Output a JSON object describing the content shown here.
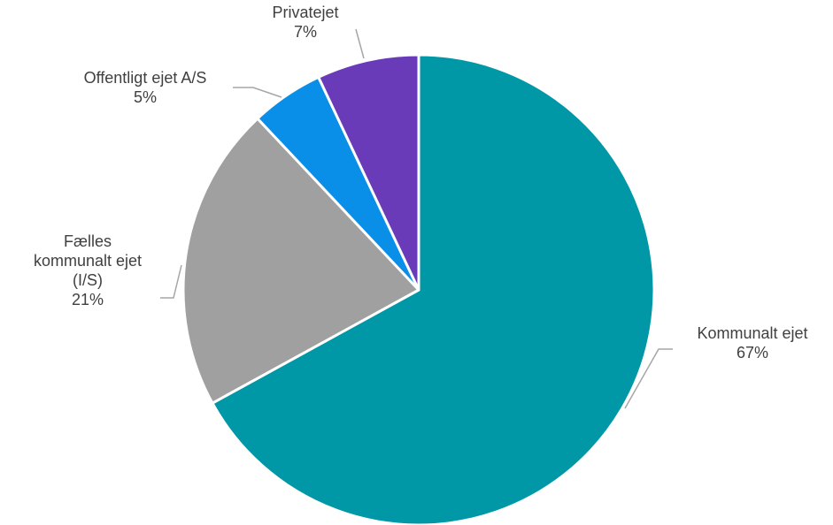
{
  "chart_data": {
    "type": "pie",
    "title": "",
    "start_angle_deg": 0,
    "direction": "clockwise",
    "slices": [
      {
        "label_lines": [
          "Kommunalt ejet"
        ],
        "value": 67,
        "value_label": "67%",
        "color": "#0097a7"
      },
      {
        "label_lines": [
          "Fælles",
          "kommunalt ejet",
          "(I/S)"
        ],
        "value": 21,
        "value_label": "21%",
        "color": "#a0a0a0"
      },
      {
        "label_lines": [
          "Offentligt ejet A/S"
        ],
        "value": 5,
        "value_label": "5%",
        "color": "#0a8fe8"
      },
      {
        "label_lines": [
          "Privatejet"
        ],
        "value": 7,
        "value_label": "7%",
        "color": "#6a3bb8"
      }
    ]
  }
}
